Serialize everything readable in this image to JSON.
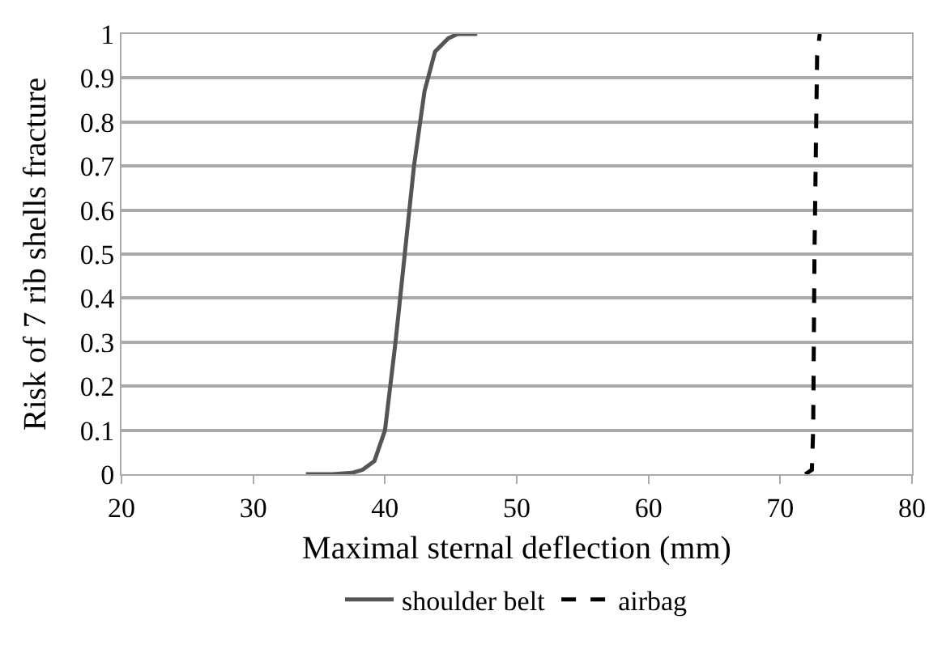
{
  "chart_data": {
    "type": "line",
    "xlabel": "Maximal sternal deflection (mm)",
    "ylabel": "Risk of 7 rib shells fracture",
    "xlim": [
      20,
      80
    ],
    "xticks": [
      20,
      30,
      40,
      50,
      60,
      70,
      80
    ],
    "ylim": [
      0,
      1
    ],
    "yticks": [
      0,
      0.1,
      0.2,
      0.3,
      0.4,
      0.5,
      0.6,
      0.7,
      0.8,
      0.9,
      1
    ],
    "grid": "y",
    "legend": "bottom",
    "marker": "none",
    "series": [
      {
        "name": "shoulder belt",
        "color": "#555555",
        "line_style": "solid",
        "x": [
          34,
          36,
          37.5,
          38.3,
          39.2,
          40,
          40.8,
          41.5,
          42.2,
          43,
          43.8,
          44.8,
          45.5,
          47
        ],
        "values": [
          0,
          0,
          0.003,
          0.01,
          0.03,
          0.1,
          0.3,
          0.5,
          0.7,
          0.87,
          0.96,
          0.99,
          1,
          1
        ]
      },
      {
        "name": "airbag",
        "color": "#000000",
        "line_style": "dashed",
        "x": [
          71.9,
          72.4,
          72.5,
          72.6,
          72.8,
          73
        ],
        "values": [
          0,
          0.01,
          0.1,
          0.5,
          0.95,
          1
        ]
      }
    ]
  }
}
